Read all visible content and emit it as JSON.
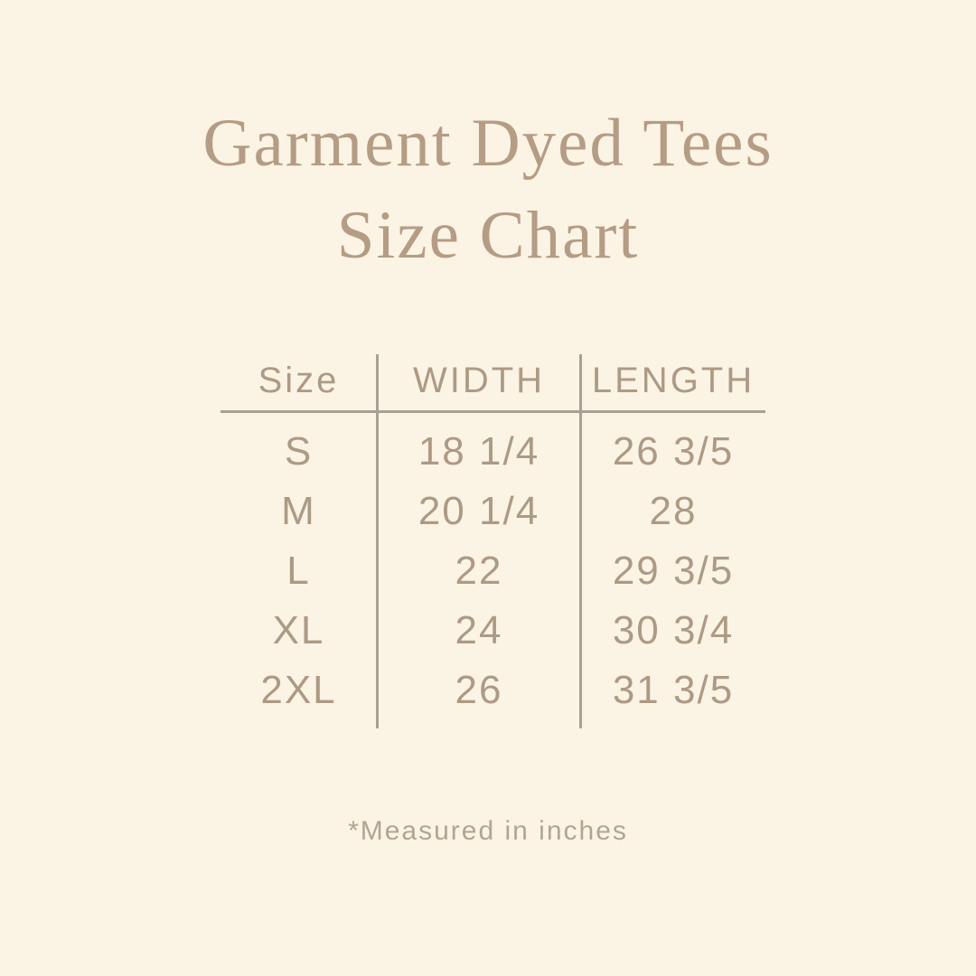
{
  "colors": {
    "background": "#fbf4e4",
    "title": "#b59c85",
    "table_text": "#ad9a85",
    "line": "#a9a095",
    "note": "#b3a492"
  },
  "title": {
    "line1": "Garment Dyed Tees",
    "line2": "Size Chart"
  },
  "table": {
    "headers": [
      "Size",
      "WIDTH",
      "LENGTH"
    ],
    "rows": [
      {
        "size": "S",
        "width": "18 1/4",
        "length": "26 3/5"
      },
      {
        "size": "M",
        "width": "20 1/4",
        "length": "28"
      },
      {
        "size": "L",
        "width": "22",
        "length": "29 3/5"
      },
      {
        "size": "XL",
        "width": "24",
        "length": "30 3/4"
      },
      {
        "size": "2XL",
        "width": "26",
        "length": "31 3/5"
      }
    ]
  },
  "footer": {
    "note": "*Measured in inches"
  },
  "chart_data": {
    "type": "table",
    "title": "Garment Dyed Tees Size Chart",
    "columns": [
      "Size",
      "WIDTH",
      "LENGTH"
    ],
    "rows": [
      [
        "S",
        "18 1/4",
        "26 3/5"
      ],
      [
        "M",
        "20 1/4",
        "28"
      ],
      [
        "L",
        "22",
        "29 3/5"
      ],
      [
        "XL",
        "24",
        "30 3/4"
      ],
      [
        "2XL",
        "26",
        "31 3/5"
      ]
    ],
    "units": "inches",
    "note": "*Measured in inches"
  }
}
